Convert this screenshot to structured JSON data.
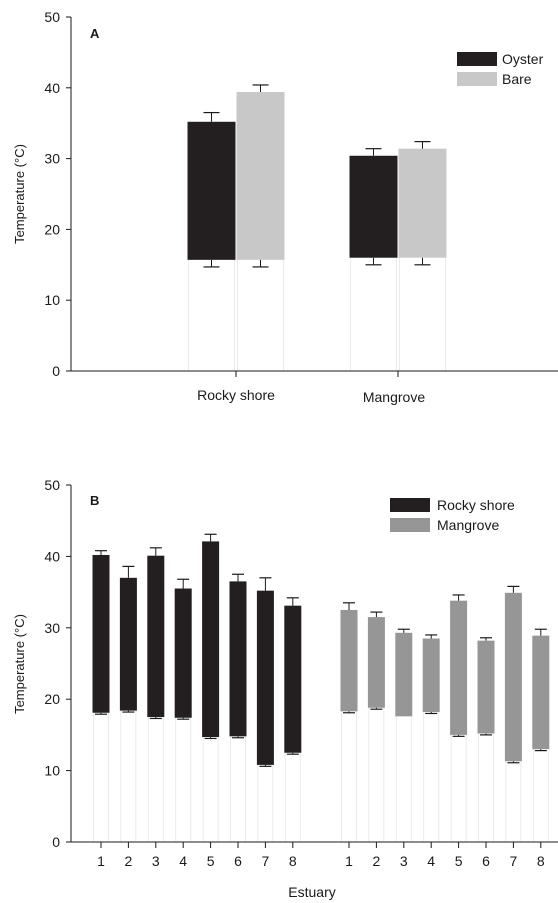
{
  "colors": {
    "oyster": "#231f20",
    "bare": "#c8c8c8",
    "rocky_shore": "#231f20",
    "mangrove": "#969696",
    "axis": "#1a1a1a"
  },
  "chart_data": [
    {
      "panel_label": "A",
      "type": "bar",
      "style": "floating range bars (min-max) with error caps",
      "ylabel": "Temperature (°C)",
      "xlabel": "",
      "ylim": [
        0,
        50
      ],
      "yticks": [
        0,
        10,
        20,
        30,
        40,
        50
      ],
      "categories": [
        "Rocky shore",
        "Mangrove"
      ],
      "legend_placement": "top-right",
      "series": [
        {
          "name": "Oyster",
          "color_key": "oyster",
          "low": [
            15.7,
            16.0
          ],
          "high": [
            35.2,
            30.4
          ],
          "low_err": [
            1.0,
            1.0
          ],
          "high_err": [
            1.3,
            1.0
          ]
        },
        {
          "name": "Bare",
          "color_key": "bare",
          "low": [
            15.7,
            16.0
          ],
          "high": [
            39.4,
            31.4
          ],
          "low_err": [
            1.0,
            1.0
          ],
          "high_err": [
            1.0,
            1.0
          ]
        }
      ]
    },
    {
      "panel_label": "B",
      "type": "bar",
      "style": "floating range bars (min-max) with error caps",
      "ylabel": "Temperature (°C)",
      "xlabel": "Estuary",
      "ylim": [
        0,
        50
      ],
      "yticks": [
        0,
        10,
        20,
        30,
        40,
        50
      ],
      "legend_placement": "top-right",
      "series": [
        {
          "name": "Rocky shore",
          "color_key": "rocky_shore",
          "x": [
            "1",
            "2",
            "3",
            "4",
            "5",
            "6",
            "7",
            "8"
          ],
          "low": [
            18.1,
            18.4,
            17.5,
            17.4,
            14.7,
            14.8,
            10.8,
            12.5
          ],
          "high": [
            40.2,
            37.0,
            40.1,
            35.5,
            42.1,
            36.5,
            35.2,
            33.1
          ],
          "low_err": [
            0.2,
            0.2,
            0.2,
            0.2,
            0.2,
            0.2,
            0.2,
            0.2
          ],
          "high_err": [
            0.6,
            1.6,
            1.1,
            1.3,
            1.0,
            1.0,
            1.8,
            1.1
          ]
        },
        {
          "name": "Mangrove",
          "color_key": "mangrove",
          "x": [
            "1",
            "2",
            "3",
            "4",
            "5",
            "6",
            "7",
            "8"
          ],
          "low": [
            18.3,
            18.8,
            17.6,
            18.2,
            15.0,
            15.2,
            11.3,
            13.0
          ],
          "high": [
            32.5,
            31.5,
            29.3,
            28.5,
            33.8,
            28.2,
            34.9,
            28.9
          ],
          "low_err": [
            0.2,
            0.2,
            0.0,
            0.2,
            0.2,
            0.2,
            0.2,
            0.2
          ],
          "high_err": [
            1.0,
            0.7,
            0.5,
            0.5,
            0.8,
            0.4,
            0.9,
            0.9
          ]
        }
      ]
    }
  ]
}
